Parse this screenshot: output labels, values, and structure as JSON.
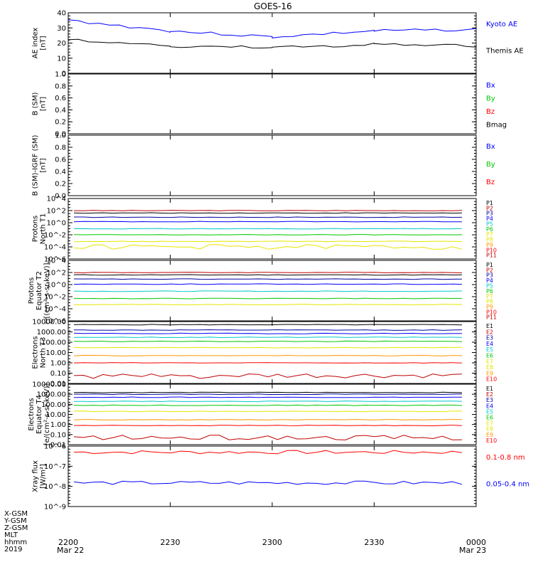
{
  "title": "GOES-16",
  "time_axis": {
    "ticks": [
      "2200",
      "2230",
      "2300",
      "2330",
      "0000"
    ],
    "start_date": "Mar 22",
    "end_date": "Mar 23",
    "row_labels": [
      "X-GSM",
      "Y-GSM",
      "Z-GSM",
      "MLT",
      "hhmm",
      "2019"
    ]
  },
  "colors": {
    "black": "#000000",
    "blue": "#0000ff",
    "green": "#00c800",
    "red": "#ff0000",
    "darkred": "#c00000",
    "cyan": "#00c8c8",
    "yellow": "#e6e600",
    "orange": "#ff9600",
    "navy": "#0000a0"
  },
  "chart_data": [
    {
      "type": "line",
      "ylabel": "AE index\n[nT]",
      "yticks": [
        "0",
        "10",
        "20",
        "30",
        "40"
      ],
      "ylim": [
        0,
        40
      ],
      "x": [
        "2200",
        "2230",
        "2300",
        "2330",
        "0000"
      ],
      "series": [
        {
          "name": "Kyoto AE",
          "color": "#0000ff",
          "values": [
            35,
            28,
            24,
            28,
            29
          ]
        },
        {
          "name": "Themis AE",
          "color": "#000000",
          "values": [
            22,
            18,
            17,
            19,
            18
          ]
        }
      ]
    },
    {
      "type": "line",
      "ylabel": "B (SM)\n[nT]",
      "yticks": [
        "0.0",
        "0.2",
        "0.4",
        "0.6",
        "0.8",
        "1.0"
      ],
      "ylim": [
        0,
        1
      ],
      "series": [
        {
          "name": "Bx",
          "color": "#0000ff",
          "values": []
        },
        {
          "name": "By",
          "color": "#00c800",
          "values": []
        },
        {
          "name": "Bz",
          "color": "#ff0000",
          "values": []
        },
        {
          "name": "Bmag",
          "color": "#000000",
          "values": []
        }
      ]
    },
    {
      "type": "line",
      "ylabel": "B (SM)-IGRF (SM)\n[nT]",
      "yticks": [
        "0.0",
        "0.2",
        "0.4",
        "0.6",
        "0.8",
        "1.0"
      ],
      "ylim": [
        0,
        1
      ],
      "series": [
        {
          "name": "Bx",
          "color": "#0000ff",
          "values": []
        },
        {
          "name": "By",
          "color": "#00c800",
          "values": []
        },
        {
          "name": "Bz",
          "color": "#ff0000",
          "values": []
        }
      ]
    },
    {
      "type": "line",
      "log": true,
      "ylabel": "Protons\nNorth T1",
      "yticks": [
        "10^4",
        "10^2",
        "10^0",
        "10^-2",
        "10^-4",
        "10^-6"
      ],
      "ylim_exp": [
        -6,
        4
      ],
      "legend": [
        "P1",
        "P2",
        "P3",
        "P4",
        "P5",
        "P6",
        "P7",
        "P8",
        "P9",
        "P10",
        "P11"
      ],
      "series": [
        {
          "name": "P1",
          "color": "#c00000",
          "values": [
            100
          ]
        },
        {
          "name": "P2",
          "color": "#000000",
          "values": [
            40
          ]
        },
        {
          "name": "P3",
          "color": "#0000a0",
          "values": [
            8
          ]
        },
        {
          "name": "P4",
          "color": "#0000ff",
          "values": [
            1.5
          ]
        },
        {
          "name": "P5",
          "color": "#00c8c8",
          "values": [
            0.1
          ]
        },
        {
          "name": "P6",
          "color": "#00c800",
          "values": [
            0.01
          ]
        },
        {
          "name": "P7",
          "color": "#e6e600",
          "values": [
            0.0008
          ]
        },
        {
          "name": "P8",
          "color": "#e6e600",
          "values": [
            0.0001
          ]
        }
      ]
    },
    {
      "type": "line",
      "log": true,
      "ylabel": "Protons\nEquator T2\n[(cm²-s-sr-keV)]",
      "yticks": [
        "10^4",
        "10^2",
        "10^0",
        "10^-2",
        "10^-4",
        "10^-6"
      ],
      "ylim_exp": [
        -6,
        4
      ],
      "legend": [
        "P1",
        "P2",
        "P3",
        "P4",
        "P5",
        "P6",
        "P7",
        "P8",
        "P9",
        "P10",
        "P11"
      ],
      "series": [
        {
          "name": "P1",
          "color": "#c00000",
          "values": [
            100
          ]
        },
        {
          "name": "P2",
          "color": "#000000",
          "values": [
            40
          ]
        },
        {
          "name": "P3",
          "color": "#0000a0",
          "values": [
            8
          ]
        },
        {
          "name": "P4",
          "color": "#0000ff",
          "values": [
            1.2
          ]
        },
        {
          "name": "P5",
          "color": "#00c8c8",
          "values": [
            0.08
          ]
        },
        {
          "name": "P6",
          "color": "#00c800",
          "values": [
            0.005
          ]
        },
        {
          "name": "P7",
          "color": "#e6e600",
          "values": [
            0.0005
          ]
        }
      ]
    },
    {
      "type": "line",
      "log": true,
      "ylabel": "Electrons\nNorth T3",
      "yticks": [
        "10000.00",
        "1000.00",
        "100.00",
        "10.00",
        "1.00",
        "0.10",
        "0.01"
      ],
      "ylim_exp": [
        -2,
        4
      ],
      "legend": [
        "E1",
        "E2",
        "E3",
        "E4",
        "E5",
        "E6",
        "E7",
        "E8",
        "E9",
        "E10"
      ],
      "series": [
        {
          "name": "E1",
          "color": "#000000",
          "values": [
            5000
          ]
        },
        {
          "name": "E2",
          "color": "#0000a0",
          "values": [
            1500
          ]
        },
        {
          "name": "E3",
          "color": "#0000ff",
          "values": [
            700
          ]
        },
        {
          "name": "E4",
          "color": "#00c8c8",
          "values": [
            300
          ]
        },
        {
          "name": "E5",
          "color": "#00c800",
          "values": [
            120
          ]
        },
        {
          "name": "E6",
          "color": "#e6e600",
          "values": [
            30
          ]
        },
        {
          "name": "E7",
          "color": "#ff9600",
          "values": [
            5
          ]
        },
        {
          "name": "E8",
          "color": "#ff0000",
          "values": [
            1
          ]
        },
        {
          "name": "E9",
          "color": "#c00000",
          "values": [
            0.05
          ]
        }
      ]
    },
    {
      "type": "line",
      "log": true,
      "ylabel": "Electrons\nEquator T4\n[e/(cm²-s-sr-keV)]",
      "yticks": [
        "10000.00",
        "1000.00",
        "100.00",
        "10.00",
        "1.00",
        "0.10",
        "0.01"
      ],
      "ylim_exp": [
        -2,
        4
      ],
      "legend": [
        "E1",
        "E2",
        "E3",
        "E4",
        "E5",
        "E6",
        "E7",
        "E8",
        "E9",
        "E10"
      ],
      "series": [
        {
          "name": "E1",
          "color": "#000000",
          "values": [
            1500
          ]
        },
        {
          "name": "E2",
          "color": "#0000a0",
          "values": [
            1000
          ]
        },
        {
          "name": "E3",
          "color": "#0000ff",
          "values": [
            500
          ]
        },
        {
          "name": "E4",
          "color": "#00c8c8",
          "values": [
            200
          ]
        },
        {
          "name": "E5",
          "color": "#00c800",
          "values": [
            80
          ]
        },
        {
          "name": "E6",
          "color": "#e6e600",
          "values": [
            20
          ]
        },
        {
          "name": "E7",
          "color": "#ff9600",
          "values": [
            3
          ]
        },
        {
          "name": "E8",
          "color": "#ff0000",
          "values": [
            0.8
          ]
        },
        {
          "name": "E9",
          "color": "#c00000",
          "values": [
            0.05
          ]
        }
      ]
    },
    {
      "type": "line",
      "log": true,
      "ylabel": "Xray flux\n[W/m²]",
      "yticks": [
        "10^-6",
        "10^-7",
        "10^-8",
        "10^-9"
      ],
      "ylim_exp": [
        -9,
        -6
      ],
      "series": [
        {
          "name": "0.1-0.8 nm",
          "color": "#ff0000",
          "values": [
            5e-07
          ]
        },
        {
          "name": "0.05-0.4 nm",
          "color": "#0000ff",
          "values": [
            1.5e-08
          ]
        }
      ]
    }
  ]
}
